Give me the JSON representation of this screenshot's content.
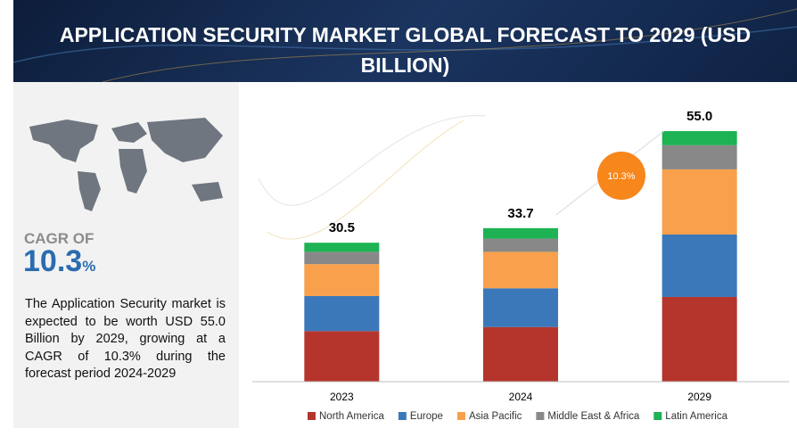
{
  "header": {
    "title": "APPLICATION SECURITY MARKET GLOBAL FORECAST TO 2029 (USD BILLION)"
  },
  "sidebar": {
    "cagr_label": "CAGR OF",
    "cagr_value": "10.3",
    "cagr_unit": "%",
    "description": "The Application Security market is expected to be worth USD 55.0 Billion by 2029, growing at a CAGR of 10.3% during the forecast period 2024-2029"
  },
  "chart_data": {
    "type": "bar",
    "stacked": true,
    "categories": [
      "2023",
      "2024",
      "2029"
    ],
    "series": [
      {
        "name": "North America",
        "color": "#b5352d",
        "values": [
          11.1,
          12.0,
          18.6
        ]
      },
      {
        "name": "Europe",
        "color": "#3a78b9",
        "values": [
          7.7,
          8.5,
          13.7
        ]
      },
      {
        "name": "Asia Pacific",
        "color": "#f8a04b",
        "values": [
          7.0,
          8.0,
          14.3
        ]
      },
      {
        "name": "Middle East & Africa",
        "color": "#888888",
        "values": [
          2.7,
          2.9,
          5.3
        ]
      },
      {
        "name": "Latin America",
        "color": "#1db354",
        "values": [
          2.0,
          2.3,
          3.1
        ]
      }
    ],
    "totals": [
      30.5,
      33.7,
      55.0
    ],
    "value_labels": [
      "30.5",
      "33.7",
      "55.0"
    ],
    "annotation": "10.3%"
  }
}
